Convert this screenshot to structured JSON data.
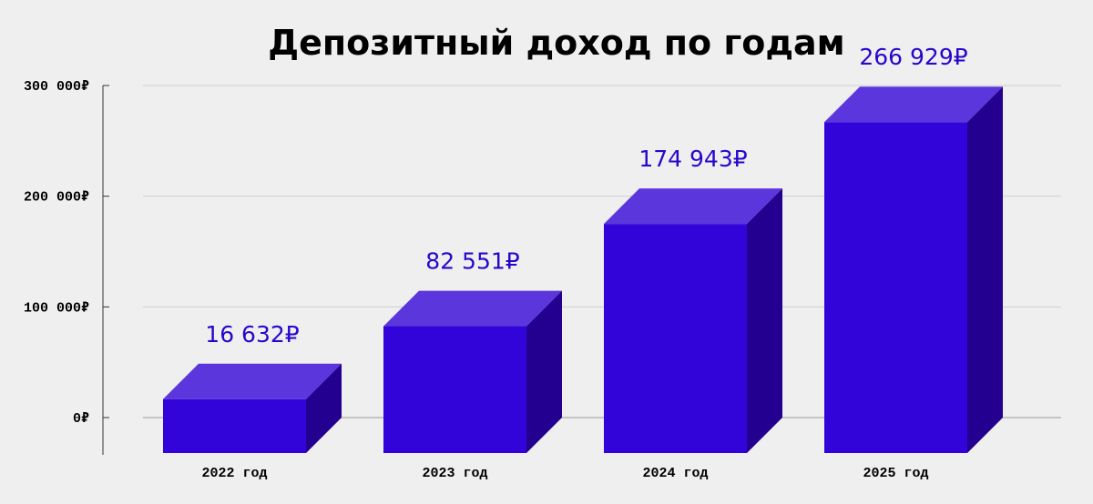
{
  "chart_data": {
    "type": "bar",
    "title": "Депозитный доход по годам",
    "xlabel": "",
    "ylabel": "",
    "categories": [
      "2022 год",
      "2023 год",
      "2024 год",
      "2025 год"
    ],
    "values": [
      16632,
      82551,
      174943,
      266929
    ],
    "value_labels": [
      "16 632₽",
      "82 551₽",
      "174 943₽",
      "266 929₽"
    ],
    "ylim": [
      0,
      300000
    ],
    "y_ticks": [
      0,
      100000,
      200000,
      300000
    ],
    "y_tick_labels": [
      "0₽",
      "100 000₽",
      "200 000₽",
      "300 000₽"
    ],
    "grid": true,
    "legend": "none",
    "style": "3d-box",
    "colors": {
      "bar_front": "#3304d9",
      "bar_top": "#5c36dd",
      "bar_side": "#240090",
      "value_label": "#2a06cc",
      "grid": "#cfcfcf",
      "axis": "#333333",
      "background": "#efefef"
    }
  }
}
